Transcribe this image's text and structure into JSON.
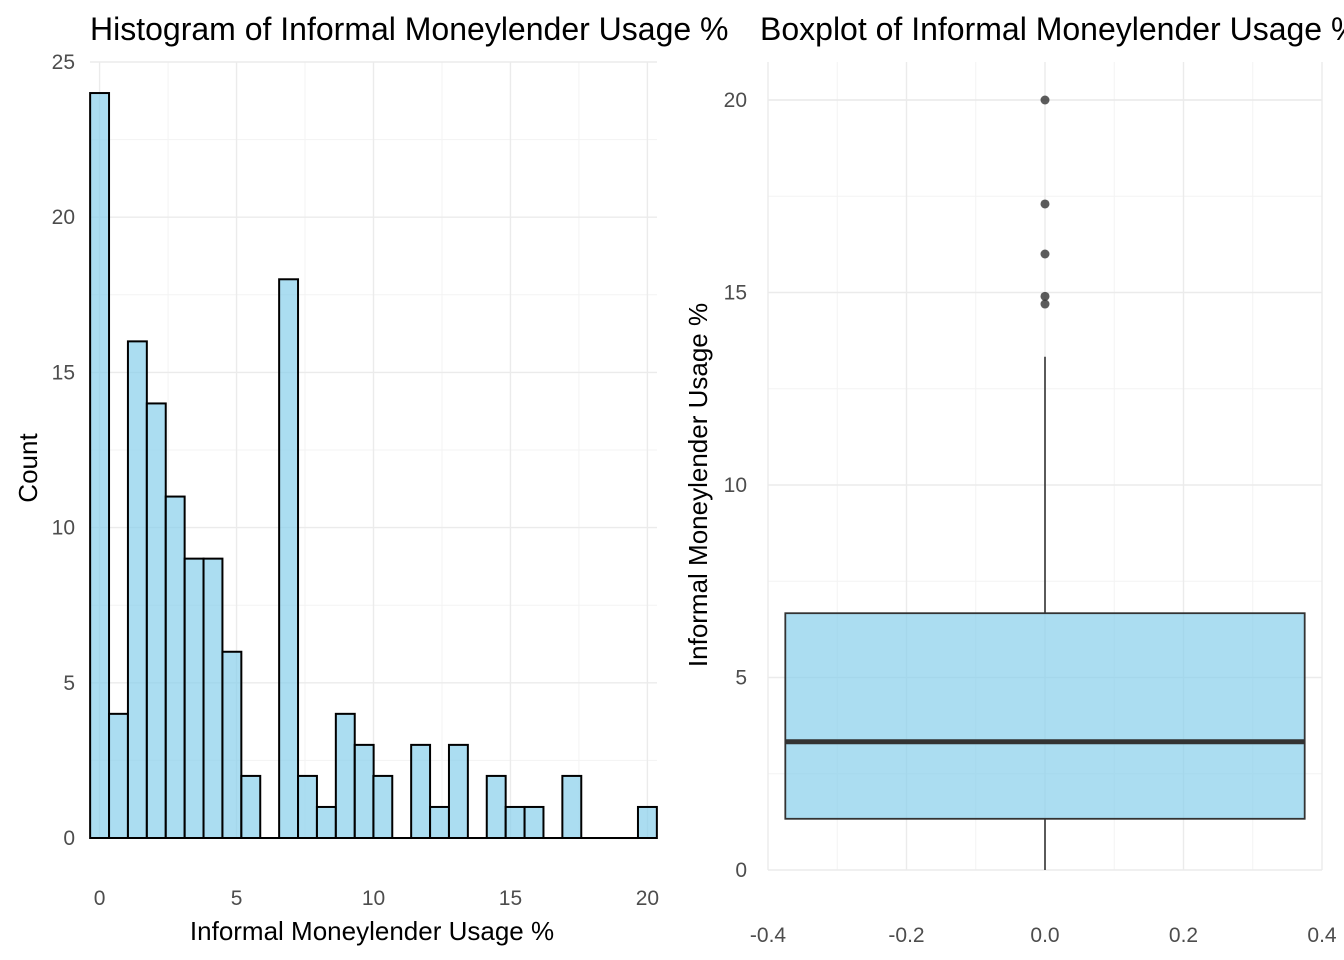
{
  "colors": {
    "fill": "#87ceeb",
    "fill_opacity": 0.7,
    "outline": "#000000",
    "box_line": "#333333",
    "outlier": "#333333",
    "grid": "#ebebeb",
    "tick_text": "#4d4d4d"
  },
  "chart_data": [
    {
      "type": "bar",
      "title": "Histogram of Informal Moneylender Usage %",
      "xlabel": "Informal Moneylender Usage %",
      "ylabel": "Count",
      "bin_width": 0.69,
      "bin_centers": [
        0.0,
        0.69,
        1.38,
        2.07,
        2.76,
        3.45,
        4.14,
        4.83,
        5.52,
        6.21,
        6.9,
        7.59,
        8.28,
        8.97,
        9.66,
        10.34,
        11.03,
        11.72,
        12.41,
        13.1,
        13.79,
        14.48,
        15.17,
        15.86,
        16.55,
        17.24,
        17.93,
        18.62,
        19.31,
        20.0
      ],
      "counts": [
        24,
        4,
        16,
        14,
        11,
        9,
        9,
        6,
        2,
        0,
        18,
        2,
        1,
        4,
        3,
        2,
        0,
        3,
        1,
        3,
        0,
        2,
        1,
        1,
        0,
        2,
        0,
        0,
        0,
        1
      ],
      "xlim": [
        -0.35,
        20.35
      ],
      "ylim": [
        0,
        25
      ],
      "x_ticks": [
        0,
        5,
        10,
        15,
        20
      ],
      "x_tick_labels": [
        "0",
        "5",
        "10",
        "15",
        "20"
      ],
      "y_ticks": [
        0,
        5,
        10,
        15,
        20,
        25
      ],
      "y_tick_labels": [
        "0",
        "5",
        "10",
        "15",
        "20",
        "25"
      ],
      "grid": true
    },
    {
      "type": "boxplot",
      "title": "Boxplot of Informal Moneylender Usage %",
      "xlabel": "",
      "ylabel": "Informal Moneylender Usage %",
      "x": 0,
      "box_width": 0.75,
      "min": 0,
      "q1": 1.33,
      "median": 3.33,
      "q3": 6.67,
      "max": 13.33,
      "outliers": [
        14.7,
        14.9,
        16.0,
        17.3,
        20.0
      ],
      "xlim": [
        -0.4,
        0.4
      ],
      "ylim": [
        0,
        20
      ],
      "x_ticks": [
        -0.4,
        -0.2,
        0.0,
        0.2,
        0.4
      ],
      "x_tick_labels": [
        "-0.4",
        "-0.2",
        "0.0",
        "0.2",
        "0.4"
      ],
      "y_ticks": [
        0,
        5,
        10,
        15,
        20
      ],
      "y_tick_labels": [
        "0",
        "5",
        "10",
        "15",
        "20"
      ],
      "grid": true
    }
  ]
}
